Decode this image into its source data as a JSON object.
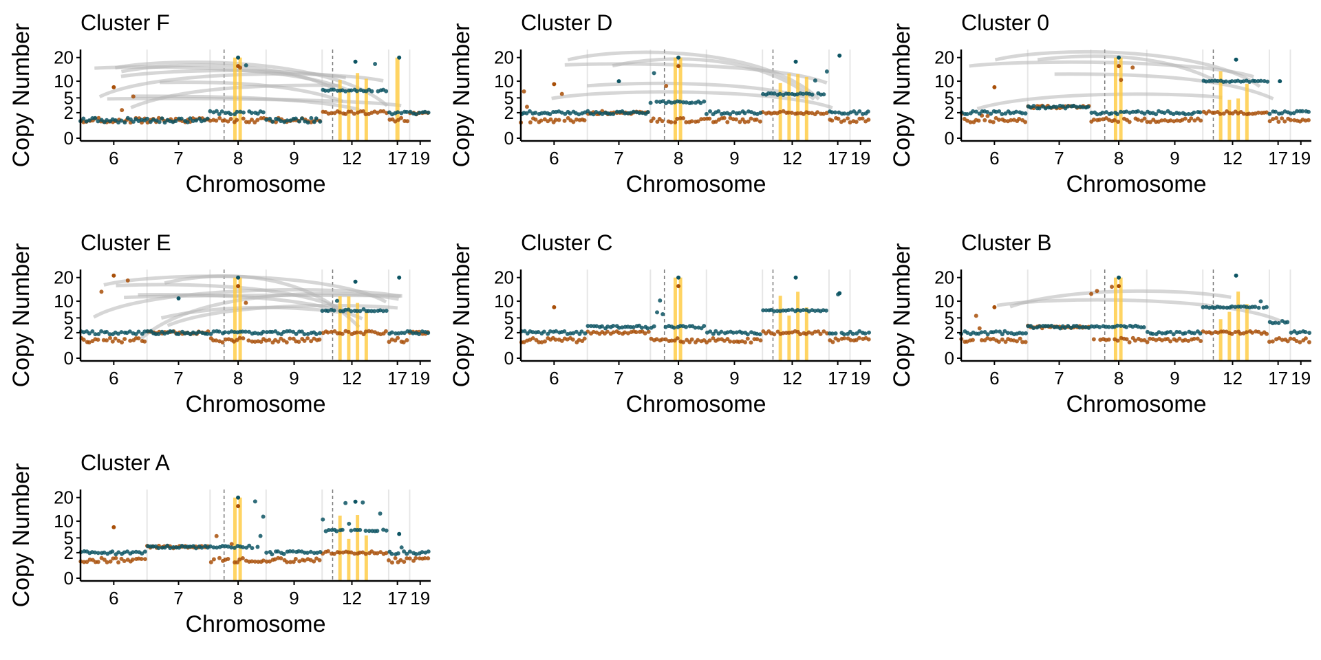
{
  "figure": {
    "panel_order": [
      "Cluster F",
      "Cluster D",
      "Cluster 0",
      "Cluster E",
      "Cluster C",
      "Cluster B",
      "Cluster A"
    ]
  },
  "colors": {
    "minor_allele_points": "#a84f08",
    "total_copy_points": "#0c5463",
    "sv_highlight": "#ffc93c",
    "sv_arc": "#b4b4b4",
    "chromosome_divider": "#e6e6e6",
    "breakpoint_line": "#777777",
    "axis": "#000000"
  },
  "chart_data": [
    {
      "type": "scatter",
      "title": "Cluster F",
      "xlabel": "Chromosome",
      "ylabel": "Copy Number",
      "x_tick_labels": [
        "6",
        "7",
        "8",
        "9",
        "12",
        "17",
        "19"
      ],
      "y_tick_labels": [
        "0",
        "2",
        "5",
        "10",
        "20"
      ],
      "y_scale": "sqrt",
      "ylim": [
        0,
        22
      ],
      "grid": "vertical chromosome dividers",
      "legend": "none",
      "series": [
        {
          "values": [
            [
              6,
              2
            ],
            [
              6,
              1
            ],
            [
              7,
              2
            ],
            [
              7,
              1
            ],
            [
              8,
              20
            ],
            [
              8,
              2
            ],
            [
              9,
              2
            ],
            [
              9,
              1
            ],
            [
              12,
              18
            ],
            [
              12,
              7
            ],
            [
              17,
              20
            ],
            [
              17,
              2
            ],
            [
              19,
              2
            ]
          ]
        },
        {
          "values": [
            [
              6,
              8
            ],
            [
              6,
              1
            ],
            [
              7,
              1
            ],
            [
              8,
              16
            ],
            [
              8,
              1
            ],
            [
              9,
              1
            ],
            [
              12,
              2
            ],
            [
              17,
              1
            ],
            [
              19,
              2
            ]
          ]
        }
      ]
    },
    {
      "type": "scatter",
      "title": "Cluster D",
      "xlabel": "Chromosome",
      "ylabel": "Copy Number",
      "x_tick_labels": [
        "6",
        "7",
        "8",
        "9",
        "12",
        "17",
        "19"
      ],
      "y_tick_labels": [
        "0",
        "2",
        "5",
        "10",
        "20"
      ],
      "y_scale": "sqrt",
      "ylim": [
        0,
        22
      ],
      "grid": "vertical chromosome dividers",
      "legend": "none",
      "series": [
        {
          "values": [
            [
              6,
              2
            ],
            [
              7,
              10
            ],
            [
              7,
              2
            ],
            [
              8,
              20
            ],
            [
              8,
              4
            ],
            [
              9,
              2
            ],
            [
              12,
              18
            ],
            [
              12,
              6
            ],
            [
              17,
              21
            ],
            [
              17,
              2
            ],
            [
              19,
              2
            ]
          ]
        },
        {
          "values": [
            [
              6,
              9
            ],
            [
              6,
              1
            ],
            [
              7,
              2
            ],
            [
              8,
              16
            ],
            [
              8,
              1
            ],
            [
              9,
              1
            ],
            [
              12,
              2
            ],
            [
              17,
              1
            ],
            [
              19,
              1
            ]
          ]
        }
      ]
    },
    {
      "type": "scatter",
      "title": "Cluster 0",
      "xlabel": "Chromosome",
      "ylabel": "Copy Number",
      "x_tick_labels": [
        "6",
        "7",
        "8",
        "9",
        "12",
        "17",
        "19"
      ],
      "y_tick_labels": [
        "0",
        "2",
        "5",
        "10",
        "20"
      ],
      "y_scale": "sqrt",
      "ylim": [
        0,
        22
      ],
      "grid": "vertical chromosome dividers",
      "legend": "none",
      "series": [
        {
          "values": [
            [
              6,
              2
            ],
            [
              7,
              3
            ],
            [
              8,
              20
            ],
            [
              8,
              2
            ],
            [
              9,
              2
            ],
            [
              12,
              19
            ],
            [
              12,
              10
            ],
            [
              17,
              10
            ],
            [
              17,
              2
            ],
            [
              19,
              2
            ]
          ]
        },
        {
          "values": [
            [
              6,
              8
            ],
            [
              6,
              1
            ],
            [
              7,
              3
            ],
            [
              8,
              16
            ],
            [
              8,
              1
            ],
            [
              9,
              1
            ],
            [
              12,
              2
            ],
            [
              17,
              1
            ],
            [
              19,
              1
            ]
          ]
        }
      ]
    },
    {
      "type": "scatter",
      "title": "Cluster E",
      "xlabel": "Chromosome",
      "ylabel": "Copy Number",
      "x_tick_labels": [
        "6",
        "7",
        "8",
        "9",
        "12",
        "17",
        "19"
      ],
      "y_tick_labels": [
        "0",
        "2",
        "5",
        "10",
        "20"
      ],
      "y_scale": "sqrt",
      "ylim": [
        0,
        22
      ],
      "grid": "vertical chromosome dividers",
      "legend": "none",
      "series": [
        {
          "values": [
            [
              6,
              2
            ],
            [
              7,
              11
            ],
            [
              7,
              2
            ],
            [
              8,
              20
            ],
            [
              8,
              2
            ],
            [
              9,
              2
            ],
            [
              12,
              18
            ],
            [
              12,
              7
            ],
            [
              17,
              20
            ],
            [
              17,
              2
            ],
            [
              19,
              2
            ]
          ]
        },
        {
          "values": [
            [
              6,
              21
            ],
            [
              6,
              1
            ],
            [
              7,
              2
            ],
            [
              8,
              16
            ],
            [
              8,
              1
            ],
            [
              9,
              1
            ],
            [
              12,
              2
            ],
            [
              17,
              1
            ],
            [
              19,
              2
            ]
          ]
        }
      ]
    },
    {
      "type": "scatter",
      "title": "Cluster C",
      "xlabel": "Chromosome",
      "ylabel": "Copy Number",
      "x_tick_labels": [
        "6",
        "7",
        "8",
        "9",
        "12",
        "17",
        "19"
      ],
      "y_tick_labels": [
        "0",
        "2",
        "5",
        "10",
        "20"
      ],
      "y_scale": "sqrt",
      "ylim": [
        0,
        22
      ],
      "grid": "vertical chromosome dividers",
      "legend": "none",
      "series": [
        {
          "values": [
            [
              6,
              2
            ],
            [
              7,
              3
            ],
            [
              8,
              20
            ],
            [
              8,
              3
            ],
            [
              9,
              2
            ],
            [
              12,
              20
            ],
            [
              12,
              7
            ],
            [
              17,
              13
            ],
            [
              17,
              2
            ],
            [
              19,
              2
            ]
          ]
        },
        {
          "values": [
            [
              6,
              8
            ],
            [
              6,
              1
            ],
            [
              7,
              2
            ],
            [
              8,
              16
            ],
            [
              8,
              1
            ],
            [
              9,
              1
            ],
            [
              12,
              2
            ],
            [
              17,
              1
            ],
            [
              19,
              1
            ]
          ]
        }
      ]
    },
    {
      "type": "scatter",
      "title": "Cluster B",
      "xlabel": "Chromosome",
      "ylabel": "Copy Number",
      "x_tick_labels": [
        "6",
        "7",
        "8",
        "9",
        "12",
        "17",
        "19"
      ],
      "y_tick_labels": [
        "0",
        "2",
        "5",
        "10",
        "20"
      ],
      "y_scale": "sqrt",
      "ylim": [
        0,
        22
      ],
      "grid": "vertical chromosome dividers",
      "legend": "none",
      "series": [
        {
          "values": [
            [
              6,
              2
            ],
            [
              7,
              3
            ],
            [
              8,
              20
            ],
            [
              8,
              3
            ],
            [
              9,
              2
            ],
            [
              12,
              21
            ],
            [
              12,
              8
            ],
            [
              17,
              4
            ],
            [
              19,
              2
            ]
          ]
        },
        {
          "values": [
            [
              6,
              8
            ],
            [
              6,
              1
            ],
            [
              7,
              3
            ],
            [
              8,
              16
            ],
            [
              8,
              1
            ],
            [
              9,
              1
            ],
            [
              12,
              2
            ],
            [
              17,
              1
            ],
            [
              19,
              1
            ]
          ]
        }
      ]
    },
    {
      "type": "scatter",
      "title": "Cluster A",
      "xlabel": "Chromosome",
      "ylabel": "Copy Number",
      "x_tick_labels": [
        "6",
        "7",
        "8",
        "9",
        "12",
        "17",
        "19"
      ],
      "y_tick_labels": [
        "0",
        "2",
        "5",
        "10",
        "20"
      ],
      "y_scale": "sqrt",
      "ylim": [
        0,
        22
      ],
      "grid": "vertical chromosome dividers",
      "legend": "none",
      "series": [
        {
          "values": [
            [
              6,
              2
            ],
            [
              7,
              3
            ],
            [
              8,
              20
            ],
            [
              8,
              3
            ],
            [
              9,
              2
            ],
            [
              12,
              18
            ],
            [
              12,
              7
            ],
            [
              17,
              6
            ],
            [
              17,
              2
            ],
            [
              19,
              2
            ]
          ]
        },
        {
          "values": [
            [
              6,
              8
            ],
            [
              6,
              1
            ],
            [
              7,
              3
            ],
            [
              8,
              16
            ],
            [
              8,
              1
            ],
            [
              9,
              1
            ],
            [
              12,
              2
            ],
            [
              17,
              1
            ],
            [
              19,
              1
            ]
          ]
        }
      ]
    }
  ]
}
